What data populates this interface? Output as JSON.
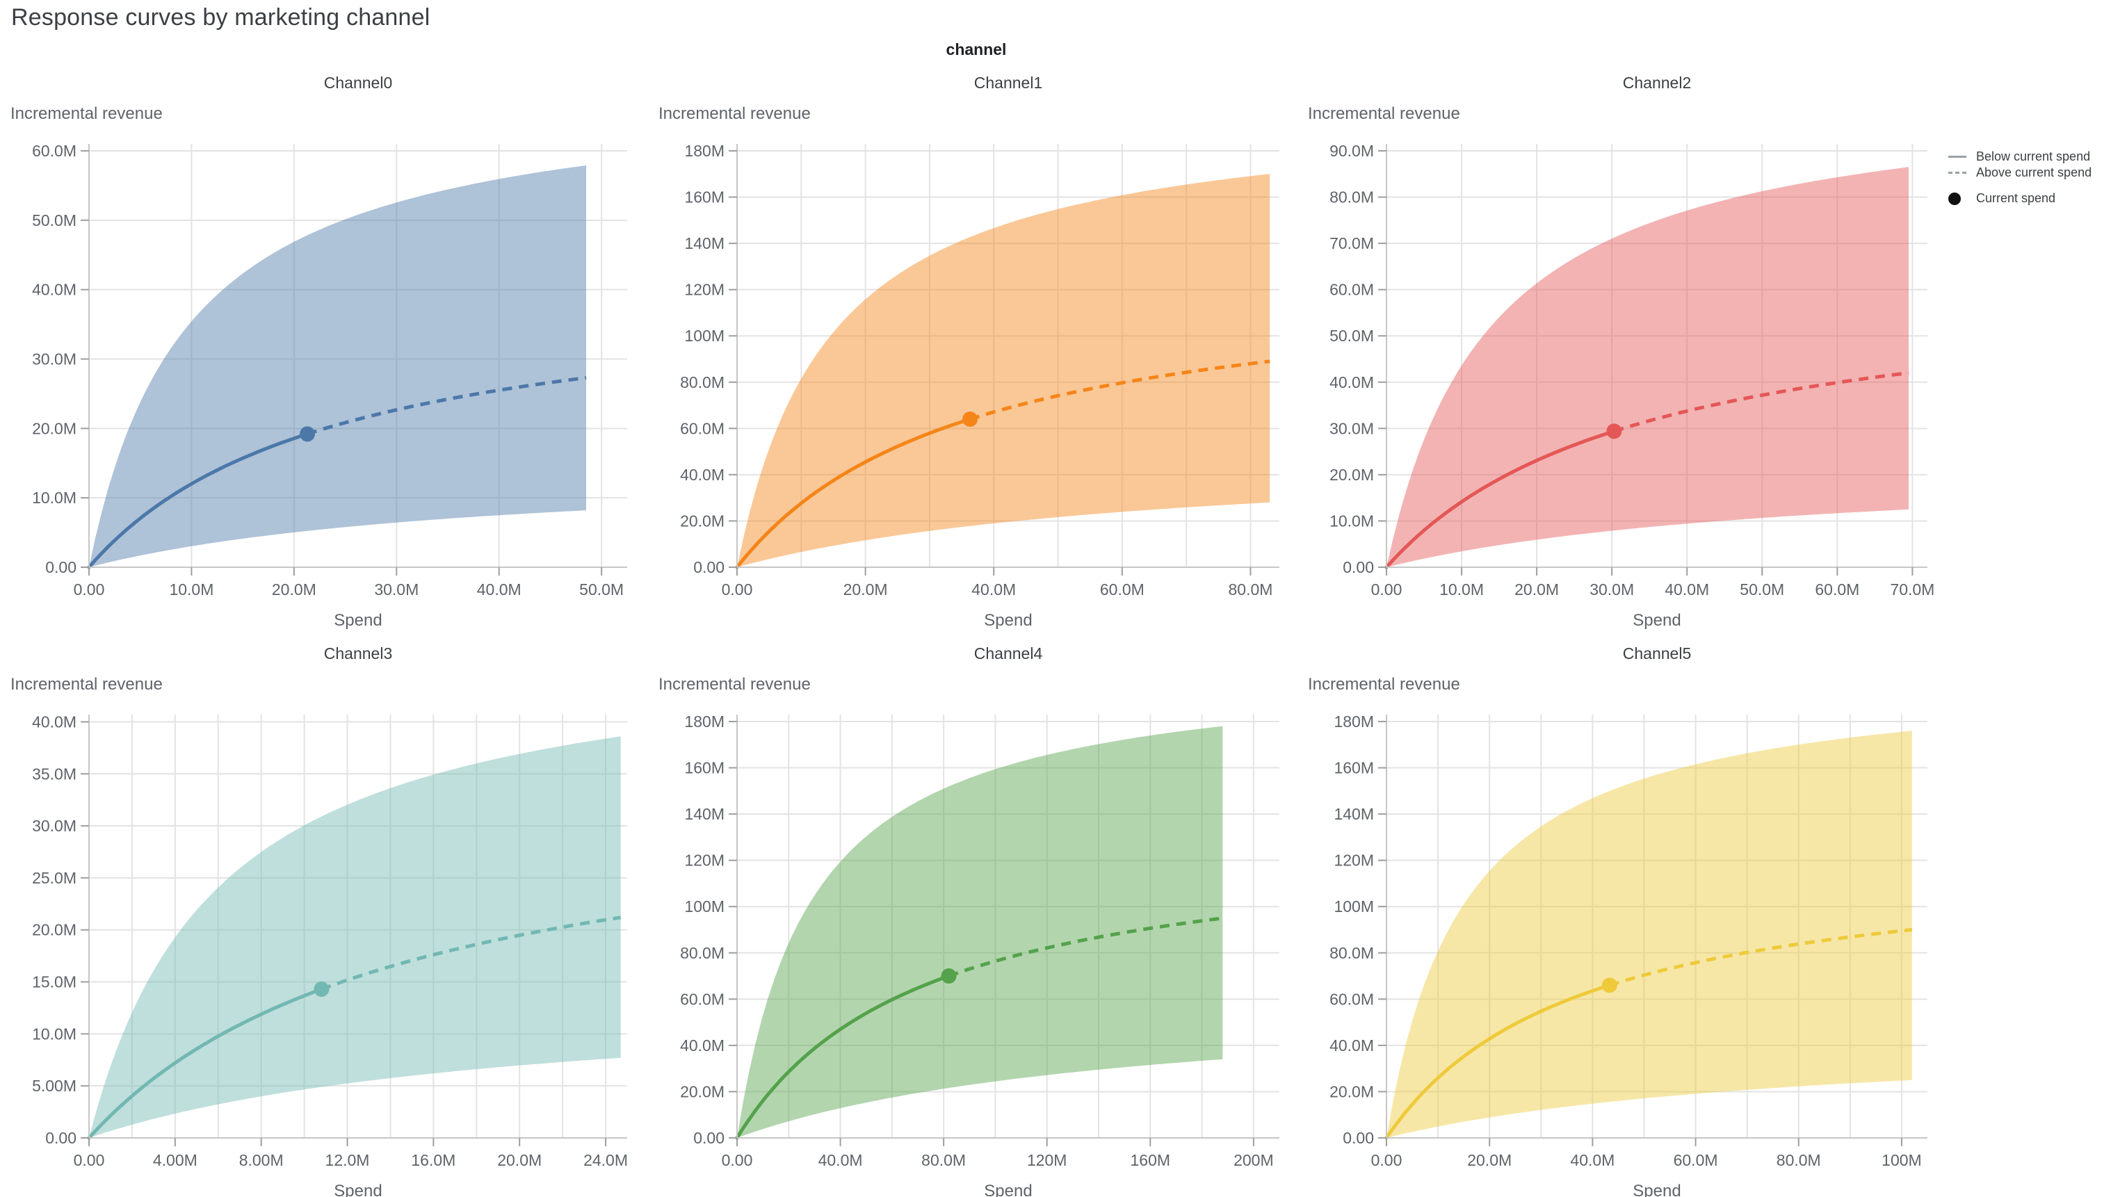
{
  "page": {
    "title": "Response curves by marketing channel",
    "facet_header": "channel"
  },
  "legend": {
    "items": [
      {
        "label": "Below current spend",
        "swatch": "solid-line"
      },
      {
        "label": "Above current spend",
        "swatch": "dashed-line"
      },
      {
        "label": "Current spend",
        "swatch": "dot"
      }
    ],
    "swatch_color": "#9aa0a6",
    "dot_color": "#111111"
  },
  "style": {
    "grid_color": "#e3e3e3",
    "domain_color": "#c6c6c6",
    "tick_color": "#9e9e9e",
    "label_color": "#5f6368",
    "title_color": "#3c4043",
    "band_opacity": 0.45
  },
  "chart_data": [
    {
      "type": "area",
      "title": "Channel0",
      "xlabel": "Spend",
      "ylabel": "Incremental revenue",
      "color": "#4c78a8",
      "units": "millions",
      "x_tick_values": [
        0,
        10,
        20,
        30,
        40,
        50
      ],
      "x_tick_labels": [
        "0.00",
        "10.0M",
        "20.0M",
        "30.0M",
        "40.0M",
        "50.0M"
      ],
      "y_tick_values": [
        0,
        10,
        20,
        30,
        40,
        50,
        60
      ],
      "y_tick_labels": [
        "0.00",
        "10.0M",
        "20.0M",
        "30.0M",
        "40.0M",
        "50.0M",
        "60.0M"
      ],
      "x_grid_step": 10,
      "xlim": [
        0,
        52.5
      ],
      "ylim": [
        0,
        61
      ],
      "current_spend": 21.3,
      "current_revenue": 19.2,
      "curve_x_end": 48.5,
      "curve_y_end": 27.3,
      "band_upper_at_end": 57.9,
      "band_lower_at_end": 8.2
    },
    {
      "type": "area",
      "title": "Channel1",
      "xlabel": "Spend",
      "ylabel": "Incremental revenue",
      "color": "#f58518",
      "units": "millions",
      "x_tick_values": [
        0,
        20,
        40,
        60,
        80
      ],
      "x_tick_labels": [
        "0.00",
        "20.0M",
        "40.0M",
        "60.0M",
        "80.0M"
      ],
      "y_tick_values": [
        0,
        20,
        40,
        60,
        80,
        100,
        120,
        140,
        160,
        180
      ],
      "y_tick_labels": [
        "0.00",
        "20.0M",
        "40.0M",
        "60.0M",
        "80.0M",
        "100M",
        "120M",
        "140M",
        "160M",
        "180M"
      ],
      "x_grid_step": 10,
      "xlim": [
        0,
        84.5
      ],
      "ylim": [
        0,
        183
      ],
      "current_spend": 36.3,
      "current_revenue": 64,
      "curve_x_end": 83,
      "curve_y_end": 89,
      "band_upper_at_end": 170,
      "band_lower_at_end": 28
    },
    {
      "type": "area",
      "title": "Channel2",
      "xlabel": "Spend",
      "ylabel": "Incremental revenue",
      "color": "#e45756",
      "units": "millions",
      "x_tick_values": [
        0,
        10,
        20,
        30,
        40,
        50,
        60,
        70
      ],
      "x_tick_labels": [
        "0.00",
        "10.0M",
        "20.0M",
        "30.0M",
        "40.0M",
        "50.0M",
        "60.0M",
        "70.0M"
      ],
      "y_tick_values": [
        0,
        10,
        20,
        30,
        40,
        50,
        60,
        70,
        80,
        90
      ],
      "y_tick_labels": [
        "0.00",
        "10.0M",
        "20.0M",
        "30.0M",
        "40.0M",
        "50.0M",
        "60.0M",
        "70.0M",
        "80.0M",
        "90.0M"
      ],
      "x_grid_step": 10,
      "xlim": [
        0,
        72
      ],
      "ylim": [
        0,
        91.5
      ],
      "current_spend": 30.3,
      "current_revenue": 29.4,
      "curve_x_end": 69.5,
      "curve_y_end": 42,
      "band_upper_at_end": 86.5,
      "band_lower_at_end": 12.5
    },
    {
      "type": "area",
      "title": "Channel3",
      "xlabel": "Spend",
      "ylabel": "Incremental revenue",
      "color": "#72b7b2",
      "units": "millions",
      "x_tick_values": [
        0,
        4,
        8,
        12,
        16,
        20,
        24
      ],
      "x_tick_labels": [
        "0.00",
        "4.00M",
        "8.00M",
        "12.0M",
        "16.0M",
        "20.0M",
        "24.0M"
      ],
      "y_tick_values": [
        0,
        5,
        10,
        15,
        20,
        25,
        30,
        35,
        40
      ],
      "y_tick_labels": [
        "0.00",
        "5.00M",
        "10.0M",
        "15.0M",
        "20.0M",
        "25.0M",
        "30.0M",
        "35.0M",
        "40.0M"
      ],
      "x_grid_step": 2,
      "xlim": [
        0,
        25
      ],
      "ylim": [
        0,
        40.7
      ],
      "current_spend": 10.8,
      "current_revenue": 14.3,
      "curve_x_end": 24.7,
      "curve_y_end": 21.2,
      "band_upper_at_end": 38.6,
      "band_lower_at_end": 7.7
    },
    {
      "type": "area",
      "title": "Channel4",
      "xlabel": "Spend",
      "ylabel": "Incremental revenue",
      "color": "#54a24b",
      "units": "millions",
      "x_tick_values": [
        0,
        40,
        80,
        120,
        160,
        200
      ],
      "x_tick_labels": [
        "0.00",
        "40.0M",
        "80.0M",
        "120M",
        "160M",
        "200M"
      ],
      "y_tick_values": [
        0,
        20,
        40,
        60,
        80,
        100,
        120,
        140,
        160,
        180
      ],
      "y_tick_labels": [
        "0.00",
        "20.0M",
        "40.0M",
        "60.0M",
        "80.0M",
        "100M",
        "120M",
        "140M",
        "160M",
        "180M"
      ],
      "x_grid_step": 20,
      "xlim": [
        0,
        210
      ],
      "ylim": [
        0,
        183
      ],
      "current_spend": 82,
      "current_revenue": 70,
      "curve_x_end": 188,
      "curve_y_end": 95,
      "band_upper_at_end": 178,
      "band_lower_at_end": 34
    },
    {
      "type": "area",
      "title": "Channel5",
      "xlabel": "Spend",
      "ylabel": "Incremental revenue",
      "color": "#eeca3b",
      "units": "millions",
      "x_tick_values": [
        0,
        20,
        40,
        60,
        80,
        100
      ],
      "x_tick_labels": [
        "0.00",
        "20.0M",
        "40.0M",
        "60.0M",
        "80.0M",
        "100M"
      ],
      "y_tick_values": [
        0,
        20,
        40,
        60,
        80,
        100,
        120,
        140,
        160,
        180
      ],
      "y_tick_labels": [
        "0.00",
        "20.0M",
        "40.0M",
        "60.0M",
        "80.0M",
        "100M",
        "120M",
        "140M",
        "160M",
        "180M"
      ],
      "x_grid_step": 10,
      "xlim": [
        0,
        105
      ],
      "ylim": [
        0,
        183
      ],
      "current_spend": 43.3,
      "current_revenue": 66,
      "curve_x_end": 102,
      "curve_y_end": 90,
      "band_upper_at_end": 176,
      "band_lower_at_end": 25
    }
  ]
}
